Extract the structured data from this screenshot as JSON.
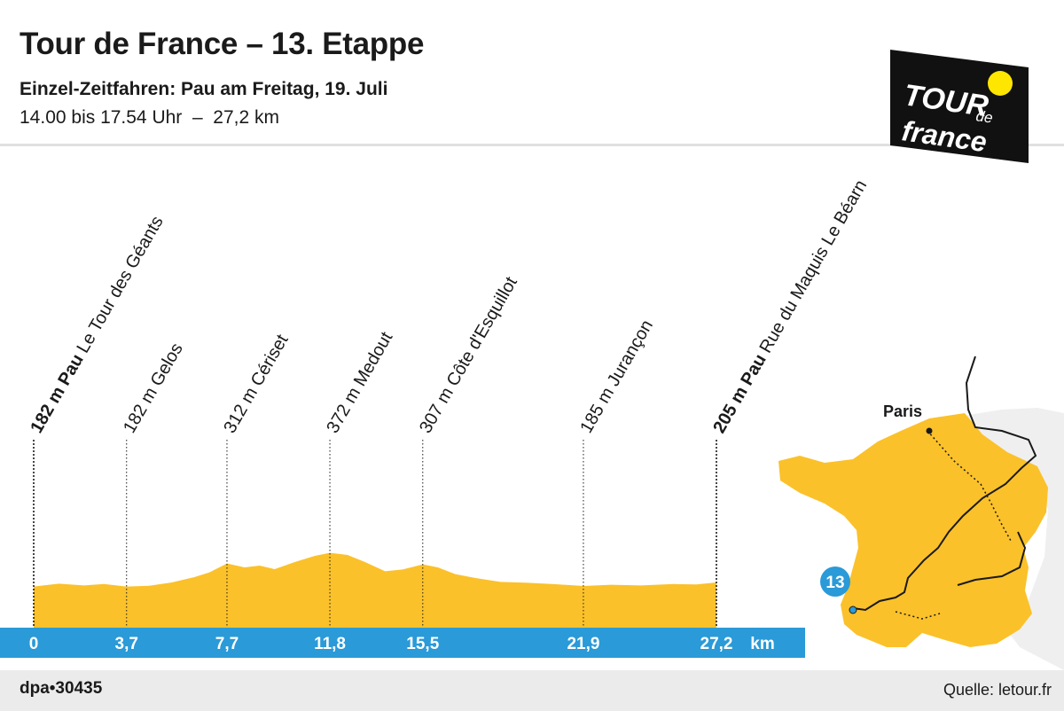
{
  "header": {
    "title": "Tour de France – 13. Etappe",
    "subtitle": "Einzel-Zeitfahren: Pau am Freitag, 19. Juli",
    "timing": "14.00 bis 17.54 Uhr  –  27,2 km"
  },
  "logo": {
    "lines": [
      "TOUR",
      "de",
      "france"
    ],
    "colors": {
      "background": "#111111",
      "text": "#ffffff",
      "ball": "#ffe600"
    }
  },
  "profile": {
    "distance_total_km": 27.2,
    "unit": "km",
    "waypoints": [
      {
        "km": 0,
        "km_label": "0",
        "elevation": "182 m",
        "city": "Pau",
        "name": "Le Tour des Géants",
        "bold": true
      },
      {
        "km": 3.7,
        "km_label": "3,7",
        "elevation": "182 m",
        "city": "",
        "name": "Gelos",
        "bold": false
      },
      {
        "km": 7.7,
        "km_label": "7,7",
        "elevation": "312 m",
        "city": "",
        "name": "Cériset",
        "bold": false
      },
      {
        "km": 11.8,
        "km_label": "11,8",
        "elevation": "372 m",
        "city": "",
        "name": "Medout",
        "bold": false
      },
      {
        "km": 15.5,
        "km_label": "15,5",
        "elevation": "307 m",
        "city": "",
        "name": "Côte d'Esquillot",
        "bold": false
      },
      {
        "km": 21.9,
        "km_label": "21,9",
        "elevation": "185 m",
        "city": "",
        "name": "Jurançon",
        "bold": false
      },
      {
        "km": 27.2,
        "km_label": "27,2",
        "elevation": "205 m",
        "city": "Pau",
        "name": "Rue du Maquis Le Béarn",
        "bold": true
      }
    ],
    "elevation_points": [
      [
        0,
        182
      ],
      [
        1.0,
        198
      ],
      [
        2.0,
        188
      ],
      [
        2.8,
        196
      ],
      [
        3.7,
        182
      ],
      [
        4.6,
        186
      ],
      [
        5.5,
        205
      ],
      [
        6.4,
        235
      ],
      [
        7.0,
        262
      ],
      [
        7.7,
        312
      ],
      [
        8.4,
        290
      ],
      [
        9.0,
        300
      ],
      [
        9.6,
        280
      ],
      [
        10.4,
        320
      ],
      [
        11.2,
        355
      ],
      [
        11.8,
        372
      ],
      [
        12.5,
        360
      ],
      [
        13.2,
        320
      ],
      [
        14.0,
        268
      ],
      [
        14.7,
        278
      ],
      [
        15.5,
        307
      ],
      [
        16.1,
        290
      ],
      [
        16.8,
        252
      ],
      [
        17.6,
        230
      ],
      [
        18.6,
        208
      ],
      [
        19.6,
        204
      ],
      [
        20.8,
        195
      ],
      [
        21.9,
        185
      ],
      [
        23.0,
        192
      ],
      [
        24.2,
        188
      ],
      [
        25.5,
        196
      ],
      [
        26.4,
        194
      ],
      [
        27.2,
        205
      ]
    ],
    "elevation_range_m": [
      0,
      800
    ],
    "colors": {
      "fill": "#fbc12a",
      "axis": "#2a9ad8",
      "axis_text": "#ffffff",
      "text": "#1a1a1a"
    }
  },
  "map": {
    "stage_number": "13",
    "city_label": "Paris",
    "colors": {
      "france": "#fbc12a",
      "neighbors": "#efefef",
      "sea": "#ffffff",
      "badge": "#2a9ad8"
    }
  },
  "footer": {
    "code": "dpa•30435",
    "source": "Quelle: letour.fr"
  }
}
